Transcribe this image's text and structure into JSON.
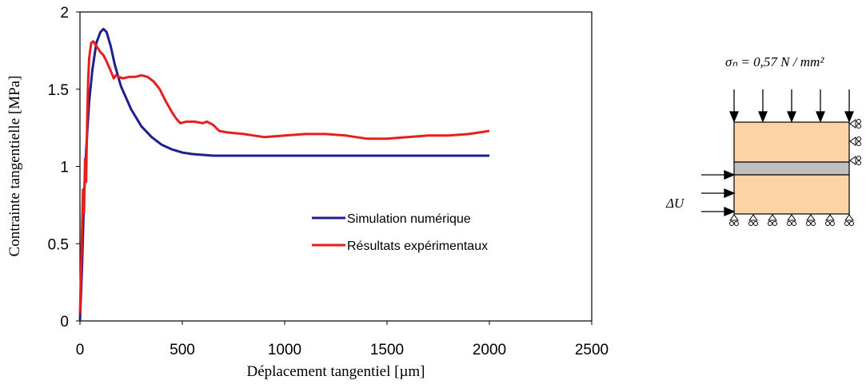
{
  "chart_data": {
    "type": "line",
    "title": "",
    "xlabel": "Déplacement tangentiel [µm]",
    "ylabel": "Contrainte tangentielle [MPa]",
    "xlim": [
      0,
      2500
    ],
    "ylim": [
      0,
      2
    ],
    "xticks": [
      "0",
      "500",
      "1000",
      "1500",
      "2000",
      "2500"
    ],
    "yticks": [
      "0",
      "0.5",
      "1",
      "1.5",
      "2"
    ],
    "grid": false,
    "legend_position": "center-right",
    "series": [
      {
        "name": "Simulation numérique",
        "color": "#1f1f8f",
        "points": [
          [
            0,
            0
          ],
          [
            10,
            0.35
          ],
          [
            20,
            0.8
          ],
          [
            30,
            1.1
          ],
          [
            45,
            1.42
          ],
          [
            60,
            1.62
          ],
          [
            80,
            1.8
          ],
          [
            100,
            1.87
          ],
          [
            115,
            1.89
          ],
          [
            130,
            1.87
          ],
          [
            150,
            1.78
          ],
          [
            170,
            1.66
          ],
          [
            200,
            1.52
          ],
          [
            250,
            1.37
          ],
          [
            300,
            1.26
          ],
          [
            350,
            1.19
          ],
          [
            400,
            1.14
          ],
          [
            450,
            1.11
          ],
          [
            500,
            1.09
          ],
          [
            550,
            1.08
          ],
          [
            600,
            1.075
          ],
          [
            650,
            1.07
          ],
          [
            700,
            1.07
          ],
          [
            1000,
            1.07
          ],
          [
            1500,
            1.07
          ],
          [
            2000,
            1.07
          ]
        ]
      },
      {
        "name": "Résultats expérimentaux",
        "color": "#e61e1e",
        "points": [
          [
            0,
            0.05
          ],
          [
            5,
            0.3
          ],
          [
            10,
            0.6
          ],
          [
            15,
            0.85
          ],
          [
            20,
            0.7
          ],
          [
            25,
            1.05
          ],
          [
            30,
            0.9
          ],
          [
            35,
            1.3
          ],
          [
            40,
            1.55
          ],
          [
            45,
            1.7
          ],
          [
            55,
            1.8
          ],
          [
            65,
            1.81
          ],
          [
            75,
            1.79
          ],
          [
            90,
            1.76
          ],
          [
            100,
            1.74
          ],
          [
            115,
            1.72
          ],
          [
            130,
            1.68
          ],
          [
            150,
            1.62
          ],
          [
            165,
            1.57
          ],
          [
            175,
            1.59
          ],
          [
            190,
            1.58
          ],
          [
            210,
            1.57
          ],
          [
            240,
            1.58
          ],
          [
            270,
            1.58
          ],
          [
            300,
            1.59
          ],
          [
            330,
            1.58
          ],
          [
            360,
            1.55
          ],
          [
            390,
            1.5
          ],
          [
            420,
            1.42
          ],
          [
            450,
            1.35
          ],
          [
            470,
            1.31
          ],
          [
            490,
            1.28
          ],
          [
            520,
            1.29
          ],
          [
            560,
            1.29
          ],
          [
            600,
            1.28
          ],
          [
            620,
            1.29
          ],
          [
            650,
            1.27
          ],
          [
            680,
            1.23
          ],
          [
            720,
            1.22
          ],
          [
            800,
            1.21
          ],
          [
            850,
            1.2
          ],
          [
            900,
            1.19
          ],
          [
            1000,
            1.2
          ],
          [
            1100,
            1.21
          ],
          [
            1200,
            1.21
          ],
          [
            1300,
            1.2
          ],
          [
            1400,
            1.18
          ],
          [
            1500,
            1.18
          ],
          [
            1600,
            1.19
          ],
          [
            1700,
            1.2
          ],
          [
            1800,
            1.2
          ],
          [
            1900,
            1.21
          ],
          [
            2000,
            1.23
          ]
        ]
      }
    ]
  },
  "diagram": {
    "equation": "σₙ = 0,57 N / mm²",
    "load_label": "ΔU"
  }
}
